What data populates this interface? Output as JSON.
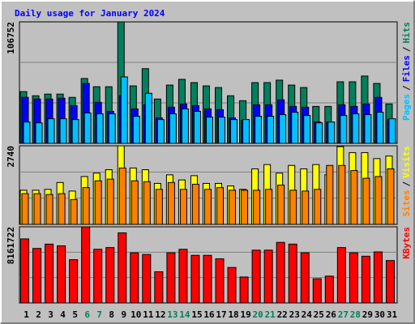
{
  "chart_data": {
    "type": "bar",
    "title": "Daily usage for January 2024",
    "legend_separator": "/",
    "categories": [
      1,
      2,
      3,
      4,
      5,
      6,
      7,
      8,
      9,
      10,
      11,
      12,
      13,
      14,
      15,
      16,
      17,
      18,
      19,
      20,
      21,
      22,
      23,
      24,
      25,
      26,
      27,
      28,
      29,
      30,
      31
    ],
    "category_colors": [
      "#000000",
      "#000000",
      "#000000",
      "#000000",
      "#000000",
      "#00805C",
      "#00805C",
      "#000000",
      "#000000",
      "#000000",
      "#000000",
      "#000000",
      "#00805C",
      "#00805C",
      "#000000",
      "#000000",
      "#000000",
      "#000000",
      "#000000",
      "#00805C",
      "#00805C",
      "#000000",
      "#000000",
      "#000000",
      "#000000",
      "#000000",
      "#00805C",
      "#00805C",
      "#000000",
      "#000000",
      "#000000"
    ],
    "panels": [
      {
        "ylim": [
          0,
          106752
        ],
        "yticks": [
          106752
        ],
        "series": [
          {
            "name": "Hits",
            "color": "#00805C",
            "values": [
              45442,
              41835,
              43278,
              43278,
              40393,
              56983,
              49770,
              49770,
              106752,
              50491,
              65638,
              38950,
              51212,
              56261,
              53376,
              50491,
              49048,
              41835,
              37508,
              53376,
              53376,
              55540,
              51212,
              49048,
              32458,
              32458,
              54098,
              54098,
              59147,
              52655,
              34622
            ]
          },
          {
            "name": "Files",
            "color": "#0000FF",
            "values": [
              40393,
              38950,
              38950,
              39672,
              33180,
              52655,
              36065,
              28131,
              41835,
              30295,
              33901,
              22360,
              31737,
              34622,
              33180,
              30295,
              29573,
              22360,
              20196,
              33901,
              33901,
              38229,
              32459,
              31737,
              18754,
              18754,
              33901,
              32459,
              34622,
              40393,
              20918
            ]
          },
          {
            "name": "Pages",
            "color": "#00C0FF",
            "values": [
              18754,
              18033,
              21639,
              21639,
              20918,
              26688,
              25967,
              25967,
              58425,
              23803,
              43999,
              20918,
              25967,
              30295,
              28131,
              23082,
              23082,
              20918,
              20918,
              23803,
              23803,
              25246,
              27410,
              24524,
              18033,
              18754,
              24524,
              25967,
              25246,
              27410,
              21639
            ]
          }
        ]
      },
      {
        "ylim": [
          0,
          2740
        ],
        "yticks": [
          2740
        ],
        "series": [
          {
            "name": "Visits",
            "color": "#FFFF00",
            "values": [
              1191,
              1191,
              1221,
              1459,
              1161,
              1668,
              1787,
              1906,
              2740,
              1966,
              1906,
              1429,
              1727,
              1549,
              1698,
              1429,
              1429,
              1340,
              1221,
              1936,
              2085,
              1787,
              2055,
              1936,
              2085,
              1727,
              2710,
              2502,
              2502,
              2293,
              2382
            ]
          },
          {
            "name": "Sites",
            "color": "#FF8000",
            "values": [
              1072,
              1072,
              1042,
              1072,
              864,
              1281,
              1519,
              1578,
              1966,
              1519,
              1489,
              1221,
              1459,
              1221,
              1400,
              1221,
              1281,
              1191,
              1191,
              1191,
              1221,
              1370,
              1191,
              1161,
              1221,
              2055,
              2055,
              1876,
              1608,
              1668,
              1936
            ]
          }
        ]
      },
      {
        "ylim": [
          0,
          8161722
        ],
        "yticks": [
          8161722
        ],
        "series": [
          {
            "name": "KBytes",
            "color": "#FF0000",
            "values": [
              6863278,
              5843061,
              6306796,
              6121302,
              4637350,
              8161722,
              5750314,
              5935808,
              7512507,
              5379326,
              5193832,
              3338892,
              5379326,
              5750314,
              5101085,
              5101085,
              4730097,
              3802627,
              2782410,
              5657567,
              5657567,
              6492290,
              6306796,
              5379326,
              2596916,
              2875157,
              5935808,
              5379326,
              5008338,
              5472073,
              4544603
            ]
          }
        ]
      }
    ]
  }
}
